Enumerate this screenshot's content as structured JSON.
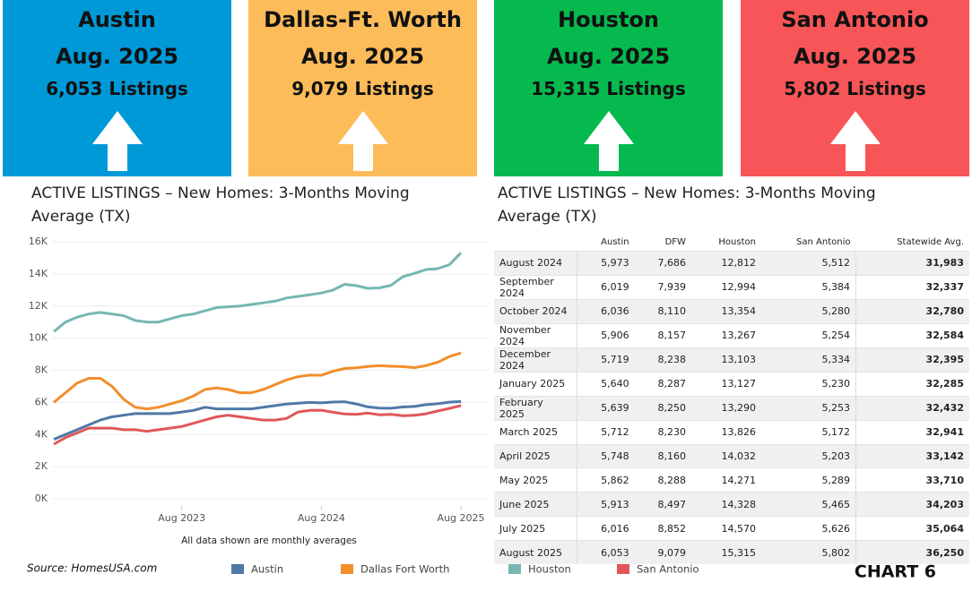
{
  "cards": [
    {
      "city": "Austin",
      "period": "Aug. 2025",
      "listings": "6,053 Listings",
      "color": "#0099d8"
    },
    {
      "city": "Dallas-Ft. Worth",
      "period": "Aug. 2025",
      "listings": "9,079 Listings",
      "color": "#fcbc5a"
    },
    {
      "city": "Houston",
      "period": "Aug. 2025",
      "listings": "15,315 Listings",
      "color": "#05b94f"
    },
    {
      "city": "San Antonio",
      "period": "Aug. 2025",
      "listings": "5,802 Listings",
      "color": "#f75557"
    }
  ],
  "chart_data": {
    "type": "line",
    "title": "ACTIVE LISTINGS – New Homes: 3-Months  Moving Average (TX)",
    "note": "All data shown are monthly averages",
    "x": [
      "2022-09",
      "2022-10",
      "2022-11",
      "2022-12",
      "2023-01",
      "2023-02",
      "2023-03",
      "2023-04",
      "2023-05",
      "2023-06",
      "2023-07",
      "2023-08",
      "2023-09",
      "2023-10",
      "2023-11",
      "2023-12",
      "2024-01",
      "2024-02",
      "2024-03",
      "2024-04",
      "2024-05",
      "2024-06",
      "2024-07",
      "2024-08",
      "2024-09",
      "2024-10",
      "2024-11",
      "2024-12",
      "2025-01",
      "2025-02",
      "2025-03",
      "2025-04",
      "2025-05",
      "2025-06",
      "2025-07",
      "2025-08"
    ],
    "xlim": [
      "2022-09",
      "2025-10"
    ],
    "xticks": [
      {
        "value": "2023-08",
        "label": "Aug 2023"
      },
      {
        "value": "2024-08",
        "label": "Aug 2024"
      },
      {
        "value": "2025-08",
        "label": "Aug 2025"
      }
    ],
    "ylim": [
      0,
      16000
    ],
    "yticks": [
      {
        "value": 0,
        "label": "0K"
      },
      {
        "value": 2000,
        "label": "2K"
      },
      {
        "value": 4000,
        "label": "4K"
      },
      {
        "value": 6000,
        "label": "6K"
      },
      {
        "value": 8000,
        "label": "8K"
      },
      {
        "value": 10000,
        "label": "10K"
      },
      {
        "value": 12000,
        "label": "12K"
      },
      {
        "value": 14000,
        "label": "14K"
      },
      {
        "value": 16000,
        "label": "16K"
      }
    ],
    "grid": true,
    "series": [
      {
        "name": "Austin",
        "color": "#4e79a7",
        "values": [
          3700,
          4000,
          4300,
          4600,
          4900,
          5100,
          5200,
          5300,
          5300,
          5300,
          5300,
          5400,
          5500,
          5700,
          5600,
          5600,
          5600,
          5600,
          5700,
          5800,
          5900,
          5950,
          6000,
          5973,
          6019,
          6036,
          5906,
          5719,
          5640,
          5639,
          5712,
          5748,
          5862,
          5913,
          6016,
          6053
        ]
      },
      {
        "name": "Dallas Fort Worth",
        "color": "#f28e2b",
        "values": [
          6000,
          6600,
          7200,
          7500,
          7500,
          7000,
          6200,
          5700,
          5600,
          5700,
          5900,
          6100,
          6400,
          6800,
          6900,
          6800,
          6600,
          6600,
          6800,
          7100,
          7400,
          7600,
          7700,
          7686,
          7939,
          8110,
          8157,
          8238,
          8287,
          8250,
          8230,
          8160,
          8288,
          8497,
          8852,
          9079
        ]
      },
      {
        "name": "Houston",
        "color": "#76b7b2",
        "values": [
          10400,
          11000,
          11300,
          11500,
          11600,
          11500,
          11400,
          11100,
          11000,
          11000,
          11200,
          11400,
          11500,
          11700,
          11900,
          11950,
          12000,
          12100,
          12200,
          12300,
          12500,
          12600,
          12700,
          12812,
          12994,
          13354,
          13267,
          13103,
          13127,
          13290,
          13826,
          14032,
          14271,
          14328,
          14570,
          15315
        ]
      },
      {
        "name": "San Antonio",
        "color": "#e15759",
        "values": [
          3400,
          3800,
          4100,
          4400,
          4400,
          4400,
          4300,
          4300,
          4200,
          4300,
          4400,
          4500,
          4700,
          4900,
          5100,
          5200,
          5100,
          5000,
          4900,
          4900,
          5000,
          5400,
          5500,
          5512,
          5384,
          5280,
          5254,
          5334,
          5230,
          5253,
          5172,
          5203,
          5289,
          5465,
          5626,
          5802
        ]
      }
    ]
  },
  "table": {
    "title": "ACTIVE LISTINGS – New Homes: 3-Months  Moving Average (TX)",
    "columns": [
      "Austin",
      "DFW",
      "Houston",
      "San Antonio",
      "Statewide Avg."
    ],
    "rows": [
      {
        "label": "August 2024",
        "values": [
          "5,973",
          "7,686",
          "12,812",
          "5,512",
          "31,983"
        ]
      },
      {
        "label": "September 2024",
        "values": [
          "6,019",
          "7,939",
          "12,994",
          "5,384",
          "32,337"
        ]
      },
      {
        "label": "October 2024",
        "values": [
          "6,036",
          "8,110",
          "13,354",
          "5,280",
          "32,780"
        ]
      },
      {
        "label": "November 2024",
        "values": [
          "5,906",
          "8,157",
          "13,267",
          "5,254",
          "32,584"
        ]
      },
      {
        "label": "December 2024",
        "values": [
          "5,719",
          "8,238",
          "13,103",
          "5,334",
          "32,395"
        ]
      },
      {
        "label": "January 2025",
        "values": [
          "5,640",
          "8,287",
          "13,127",
          "5,230",
          "32,285"
        ]
      },
      {
        "label": "February 2025",
        "values": [
          "5,639",
          "8,250",
          "13,290",
          "5,253",
          "32,432"
        ]
      },
      {
        "label": "March 2025",
        "values": [
          "5,712",
          "8,230",
          "13,826",
          "5,172",
          "32,941"
        ]
      },
      {
        "label": "April 2025",
        "values": [
          "5,748",
          "8,160",
          "14,032",
          "5,203",
          "33,142"
        ]
      },
      {
        "label": "May 2025",
        "values": [
          "5,862",
          "8,288",
          "14,271",
          "5,289",
          "33,710"
        ]
      },
      {
        "label": "June 2025",
        "values": [
          "5,913",
          "8,497",
          "14,328",
          "5,465",
          "34,203"
        ]
      },
      {
        "label": "July 2025",
        "values": [
          "6,016",
          "8,852",
          "14,570",
          "5,626",
          "35,064"
        ]
      },
      {
        "label": "August 2025",
        "values": [
          "6,053",
          "9,079",
          "15,315",
          "5,802",
          "36,250"
        ]
      }
    ]
  },
  "source": "Source: HomesUSA.com",
  "chart_label": "CHART 6"
}
